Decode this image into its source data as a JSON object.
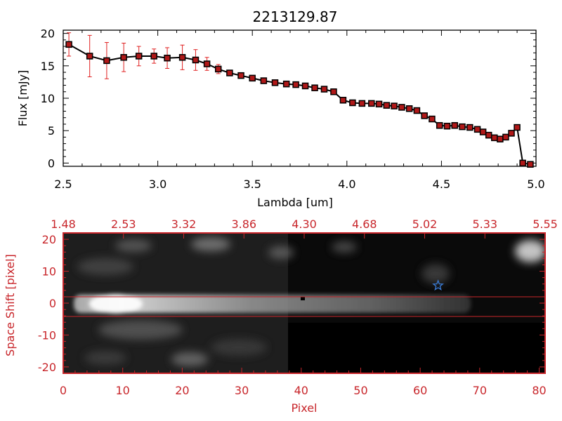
{
  "chart_data": [
    {
      "type": "line",
      "title": "2213129.87",
      "xlabel": "Lambda [um]",
      "ylabel": "Flux [mJy]",
      "xlim": [
        2.5,
        5.0
      ],
      "ylim": [
        -0.5,
        20.5
      ],
      "xticks": [
        "2.5",
        "3.0",
        "3.5",
        "4.0",
        "4.5",
        "5.0"
      ],
      "yticks": [
        "0",
        "5",
        "10",
        "15",
        "20"
      ],
      "colors": {
        "line": "#000000",
        "marker": "#b01818",
        "errorbar": "#e02020"
      },
      "series": [
        {
          "x": [
            2.53,
            2.64,
            2.73,
            2.82,
            2.9,
            2.98,
            3.05,
            3.13,
            3.2,
            3.26,
            3.32,
            3.38,
            3.44,
            3.5,
            3.56,
            3.62,
            3.68,
            3.73,
            3.78,
            3.83,
            3.88,
            3.93,
            3.98,
            4.03,
            4.08,
            4.13,
            4.17,
            4.21,
            4.25,
            4.29,
            4.33,
            4.37,
            4.41,
            4.45,
            4.49,
            4.53,
            4.57,
            4.61,
            4.65,
            4.69,
            4.72,
            4.75,
            4.78,
            4.81,
            4.84,
            4.87,
            4.9,
            4.93,
            4.97
          ],
          "y": [
            18.3,
            16.5,
            15.8,
            16.3,
            16.5,
            16.5,
            16.2,
            16.3,
            15.9,
            15.3,
            14.5,
            13.9,
            13.5,
            13.1,
            12.7,
            12.4,
            12.2,
            12.1,
            11.9,
            11.6,
            11.4,
            11.0,
            9.7,
            9.3,
            9.2,
            9.2,
            9.1,
            8.9,
            8.8,
            8.6,
            8.4,
            8.1,
            7.3,
            6.8,
            5.8,
            5.7,
            5.8,
            5.6,
            5.5,
            5.2,
            4.8,
            4.3,
            3.9,
            3.7,
            4.0,
            4.6,
            5.5,
            0.0,
            -0.2
          ],
          "yerr": [
            1.8,
            3.2,
            2.8,
            2.2,
            1.5,
            1.1,
            1.6,
            1.9,
            1.6,
            1.0,
            0.7,
            0.4,
            0.3,
            0.2,
            0.2,
            0.2,
            0.2,
            0.2,
            0.2,
            0.2,
            0.2,
            0.2,
            0.2,
            0.2,
            0.2,
            0.2,
            0.2,
            0.2,
            0.2,
            0.2,
            0.2,
            0.2,
            0.2,
            0.2,
            0.2,
            0.2,
            0.2,
            0.2,
            0.2,
            0.2,
            0.2,
            0.2,
            0.2,
            0.2,
            0.2,
            0.2,
            0.2,
            0.2,
            0.2
          ]
        }
      ]
    },
    {
      "type": "heatmap",
      "xlabel": "Pixel",
      "ylabel": "Space Shift [pixel]",
      "xlim": [
        0,
        81
      ],
      "ylim": [
        -22,
        22
      ],
      "xticks": [
        "0",
        "10",
        "20",
        "30",
        "40",
        "50",
        "60",
        "70",
        "80"
      ],
      "yticks": [
        "-20",
        "-10",
        "0",
        "10",
        "20"
      ],
      "top_ticks": [
        "1.48",
        "2.53",
        "3.32",
        "3.86",
        "4.30",
        "4.68",
        "5.02",
        "5.33",
        "5.55"
      ],
      "extraction_lines": [
        3,
        -3
      ],
      "star_marker": {
        "x": 63,
        "y": 5.5
      },
      "colors": {
        "frame": "#c8262b",
        "star": "#3a7bd5"
      }
    }
  ]
}
